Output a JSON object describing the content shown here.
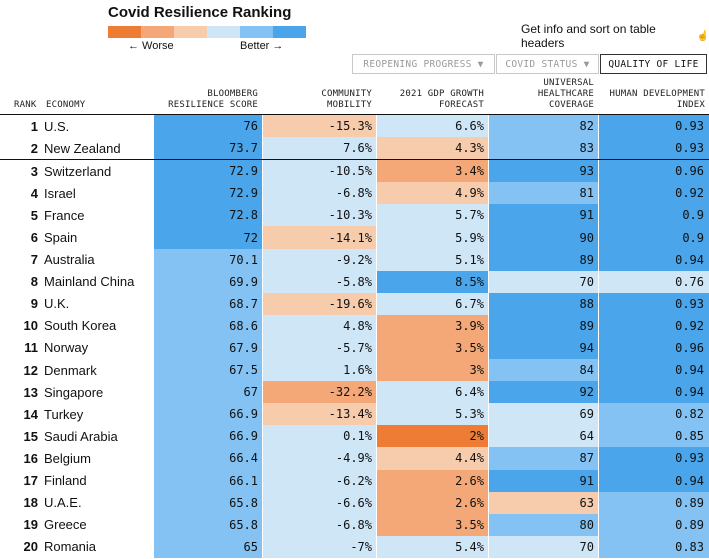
{
  "header": {
    "title": "Covid Resilience Ranking",
    "legend_worse": "← Worse",
    "legend_better": "Better →",
    "legend_colors": [
      "#ef7c34",
      "#f4a877",
      "#f7ccac",
      "#cfe6f7",
      "#83c2f2",
      "#4aa5ea"
    ],
    "get_info": "Get info and sort on table headers",
    "hand_icon": "pointing-hand-icon"
  },
  "tabs": [
    {
      "label": "REOPENING PROGRESS ▼",
      "active": false
    },
    {
      "label": "COVID STATUS ▼",
      "active": false
    },
    {
      "label": "QUALITY OF LIFE",
      "active": true
    }
  ],
  "columns": {
    "rank": "RANK",
    "economy": "ECONOMY",
    "score": "BLOOMBERG\nRESILIENCE SCORE",
    "mobility": "COMMUNITY\nMOBILITY",
    "gdp": "2021 GDP GROWTH\nFORECAST",
    "health": "UNIVERSAL\nHEALTHCARE\nCOVERAGE",
    "hdi": "HUMAN DEVELOPMENT\nINDEX"
  },
  "colors": {
    "dark_orange": "#ef7c34",
    "orange": "#f4a877",
    "light_orange": "#f7ccac",
    "light_blue": "#cfe6f7",
    "blue": "#83c2f2",
    "dark_blue": "#4aa5ea"
  },
  "rows": [
    {
      "rank": "1",
      "economy": "U.S.",
      "score": "76",
      "mobility": "-15.3%",
      "gdp": "6.6%",
      "health": "82",
      "hdi": "0.93",
      "colors": [
        "dark_blue",
        "light_orange",
        "light_blue",
        "blue",
        "dark_blue"
      ]
    },
    {
      "rank": "2",
      "economy": "New Zealand",
      "score": "73.7",
      "mobility": "7.6%",
      "gdp": "4.3%",
      "health": "83",
      "hdi": "0.93",
      "colors": [
        "dark_blue",
        "light_blue",
        "light_orange",
        "blue",
        "dark_blue"
      ]
    },
    {
      "rank": "3",
      "economy": "Switzerland",
      "score": "72.9",
      "mobility": "-10.5%",
      "gdp": "3.4%",
      "health": "93",
      "hdi": "0.96",
      "colors": [
        "dark_blue",
        "light_blue",
        "orange",
        "dark_blue",
        "dark_blue"
      ]
    },
    {
      "rank": "4",
      "economy": "Israel",
      "score": "72.9",
      "mobility": "-6.8%",
      "gdp": "4.9%",
      "health": "81",
      "hdi": "0.92",
      "colors": [
        "dark_blue",
        "light_blue",
        "light_orange",
        "blue",
        "dark_blue"
      ]
    },
    {
      "rank": "5",
      "economy": "France",
      "score": "72.8",
      "mobility": "-10.3%",
      "gdp": "5.7%",
      "health": "91",
      "hdi": "0.9",
      "colors": [
        "dark_blue",
        "light_blue",
        "light_blue",
        "dark_blue",
        "dark_blue"
      ]
    },
    {
      "rank": "6",
      "economy": "Spain",
      "score": "72",
      "mobility": "-14.1%",
      "gdp": "5.9%",
      "health": "90",
      "hdi": "0.9",
      "colors": [
        "dark_blue",
        "light_orange",
        "light_blue",
        "dark_blue",
        "dark_blue"
      ]
    },
    {
      "rank": "7",
      "economy": "Australia",
      "score": "70.1",
      "mobility": "-9.2%",
      "gdp": "5.1%",
      "health": "89",
      "hdi": "0.94",
      "colors": [
        "blue",
        "light_blue",
        "light_blue",
        "dark_blue",
        "dark_blue"
      ]
    },
    {
      "rank": "8",
      "economy": "Mainland China",
      "score": "69.9",
      "mobility": "-5.8%",
      "gdp": "8.5%",
      "health": "70",
      "hdi": "0.76",
      "colors": [
        "blue",
        "light_blue",
        "dark_blue",
        "light_blue",
        "light_blue"
      ]
    },
    {
      "rank": "9",
      "economy": "U.K.",
      "score": "68.7",
      "mobility": "-19.6%",
      "gdp": "6.7%",
      "health": "88",
      "hdi": "0.93",
      "colors": [
        "blue",
        "light_orange",
        "light_blue",
        "dark_blue",
        "dark_blue"
      ]
    },
    {
      "rank": "10",
      "economy": "South Korea",
      "score": "68.6",
      "mobility": "4.8%",
      "gdp": "3.9%",
      "health": "89",
      "hdi": "0.92",
      "colors": [
        "blue",
        "light_blue",
        "orange",
        "dark_blue",
        "dark_blue"
      ]
    },
    {
      "rank": "11",
      "economy": "Norway",
      "score": "67.9",
      "mobility": "-5.7%",
      "gdp": "3.5%",
      "health": "94",
      "hdi": "0.96",
      "colors": [
        "blue",
        "light_blue",
        "orange",
        "dark_blue",
        "dark_blue"
      ]
    },
    {
      "rank": "12",
      "economy": "Denmark",
      "score": "67.5",
      "mobility": "1.6%",
      "gdp": "3%",
      "health": "84",
      "hdi": "0.94",
      "colors": [
        "blue",
        "light_blue",
        "orange",
        "blue",
        "dark_blue"
      ]
    },
    {
      "rank": "13",
      "economy": "Singapore",
      "score": "67",
      "mobility": "-32.2%",
      "gdp": "6.4%",
      "health": "92",
      "hdi": "0.94",
      "colors": [
        "blue",
        "orange",
        "light_blue",
        "dark_blue",
        "dark_blue"
      ]
    },
    {
      "rank": "14",
      "economy": "Turkey",
      "score": "66.9",
      "mobility": "-13.4%",
      "gdp": "5.3%",
      "health": "69",
      "hdi": "0.82",
      "colors": [
        "blue",
        "light_orange",
        "light_blue",
        "light_blue",
        "blue"
      ]
    },
    {
      "rank": "15",
      "economy": "Saudi Arabia",
      "score": "66.9",
      "mobility": "0.1%",
      "gdp": "2%",
      "health": "64",
      "hdi": "0.85",
      "colors": [
        "blue",
        "light_blue",
        "dark_orange",
        "light_blue",
        "blue"
      ]
    },
    {
      "rank": "16",
      "economy": "Belgium",
      "score": "66.4",
      "mobility": "-4.9%",
      "gdp": "4.4%",
      "health": "87",
      "hdi": "0.93",
      "colors": [
        "blue",
        "light_blue",
        "light_orange",
        "blue",
        "dark_blue"
      ]
    },
    {
      "rank": "17",
      "economy": "Finland",
      "score": "66.1",
      "mobility": "-6.2%",
      "gdp": "2.6%",
      "health": "91",
      "hdi": "0.94",
      "colors": [
        "blue",
        "light_blue",
        "orange",
        "dark_blue",
        "dark_blue"
      ]
    },
    {
      "rank": "18",
      "economy": "U.A.E.",
      "score": "65.8",
      "mobility": "-6.6%",
      "gdp": "2.6%",
      "health": "63",
      "hdi": "0.89",
      "colors": [
        "blue",
        "light_blue",
        "orange",
        "light_orange",
        "blue"
      ]
    },
    {
      "rank": "19",
      "economy": "Greece",
      "score": "65.8",
      "mobility": "-6.8%",
      "gdp": "3.5%",
      "health": "80",
      "hdi": "0.89",
      "colors": [
        "blue",
        "light_blue",
        "orange",
        "blue",
        "blue"
      ]
    },
    {
      "rank": "20",
      "economy": "Romania",
      "score": "65",
      "mobility": "-7%",
      "gdp": "5.4%",
      "health": "70",
      "hdi": "0.83",
      "colors": [
        "blue",
        "light_blue",
        "light_blue",
        "light_blue",
        "blue"
      ]
    }
  ]
}
